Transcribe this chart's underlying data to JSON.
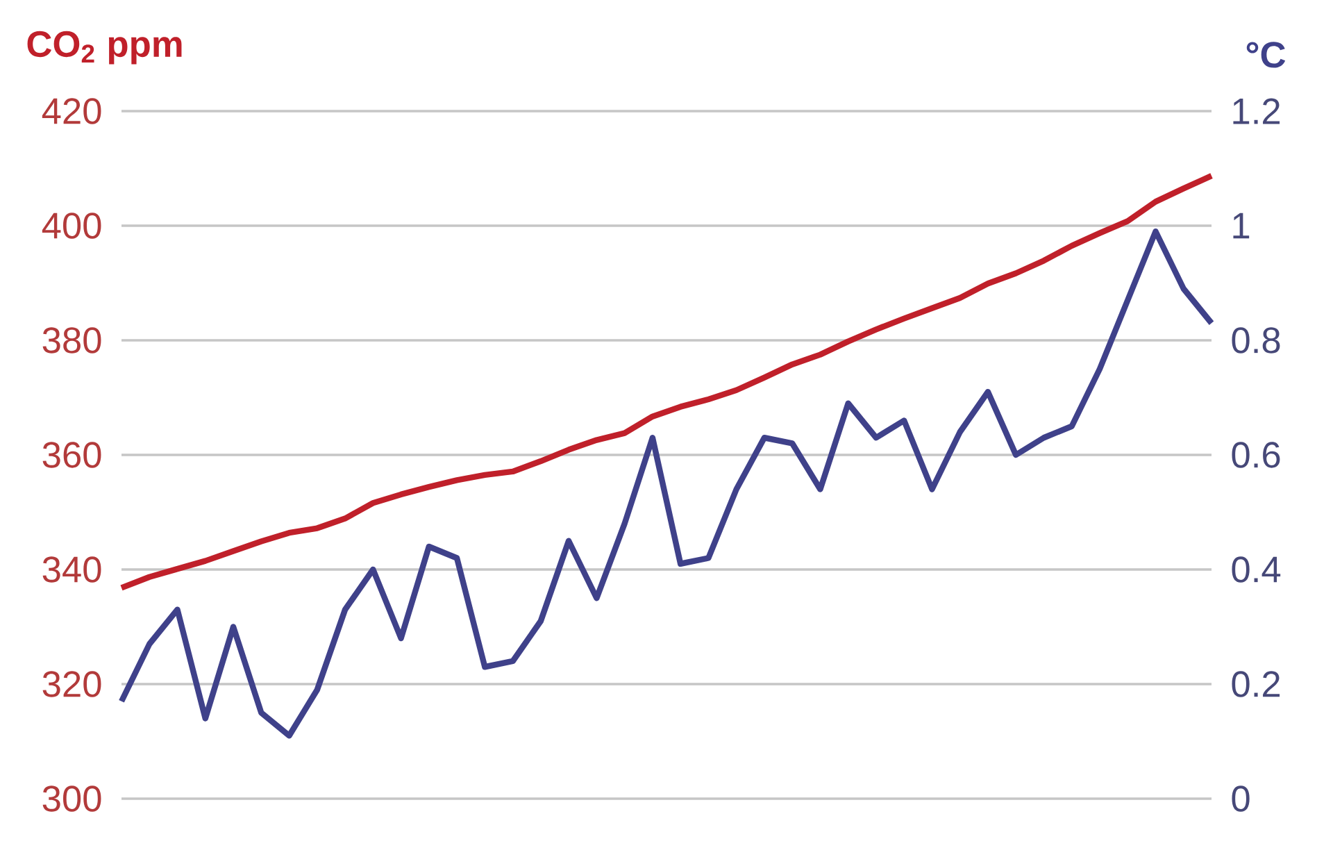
{
  "chart_data": {
    "type": "line",
    "ylabel": "CO$_{2}$ ppm",
    "y2label": "°C",
    "categories": [
      null,
      null,
      null,
      null,
      null,
      null,
      null,
      null,
      null,
      null,
      null,
      null,
      null,
      null,
      null,
      null,
      null,
      null,
      null,
      null,
      null,
      null,
      null,
      null,
      null,
      null,
      null,
      null,
      null,
      null,
      null,
      null,
      null,
      null,
      null,
      null,
      null,
      null,
      null,
      null
    ],
    "series": [
      {
        "color": "#c0202a",
        "values": [
          336.8,
          338.7,
          340.1,
          341.5,
          343.2,
          344.9,
          346.4,
          347.2,
          348.9,
          351.6,
          353.1,
          354.4,
          355.6,
          356.5,
          357.1,
          358.9,
          360.9,
          362.6,
          363.8,
          366.7,
          368.4,
          369.7,
          371.3,
          373.5,
          375.8,
          377.5,
          379.8,
          381.9,
          383.8,
          385.6,
          387.4,
          389.9,
          391.7,
          393.9,
          396.5,
          398.7,
          400.8,
          404.2,
          406.5,
          408.7
        ]
      },
      {
        "color": "#3f418a",
        "axis": "y2",
        "values": [
          0.17,
          0.27,
          0.33,
          0.14,
          0.3,
          0.15,
          0.11,
          0.19,
          0.33,
          0.4,
          0.28,
          0.44,
          0.42,
          0.23,
          0.24,
          0.31,
          0.45,
          0.35,
          0.48,
          0.63,
          0.41,
          0.42,
          0.54,
          0.63,
          0.62,
          0.54,
          0.69,
          0.63,
          0.66,
          0.54,
          0.64,
          0.71,
          0.6,
          0.63,
          0.65,
          0.75,
          0.87,
          0.99,
          0.89,
          0.83
        ]
      }
    ],
    "ylim": [
      300,
      420
    ],
    "yticks": [
      300,
      320,
      340,
      360,
      380,
      400,
      420
    ],
    "y2lim": [
      0,
      1.2
    ],
    "y2ticks": [
      0,
      0.2,
      0.4,
      0.6,
      0.8,
      1,
      1.2
    ],
    "grid": "y",
    "marker": "none",
    "line_style": "solid"
  }
}
